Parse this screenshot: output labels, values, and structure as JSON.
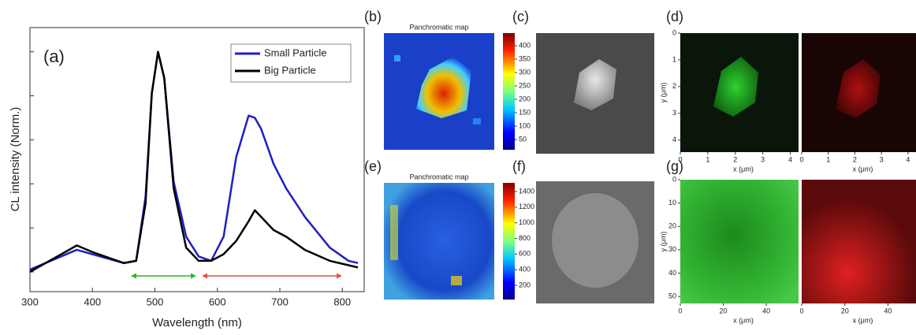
{
  "chart_data": {
    "type": "line",
    "annotation": "(a)",
    "xlabel": "Wavelength (nm)",
    "ylabel": "CL intensity (Norm.)",
    "x": [
      300,
      350,
      375,
      400,
      450,
      470,
      485,
      495,
      505,
      515,
      530,
      550,
      570,
      590,
      610,
      630,
      650,
      660,
      670,
      690,
      710,
      740,
      780,
      810,
      825
    ],
    "series": [
      {
        "name": "Small Particle",
        "color": "#1f1fc4",
        "values": [
          0.01,
          0.07,
          0.1,
          0.08,
          0.04,
          0.05,
          0.34,
          0.81,
          1.0,
          0.88,
          0.41,
          0.16,
          0.07,
          0.05,
          0.16,
          0.52,
          0.71,
          0.7,
          0.65,
          0.49,
          0.38,
          0.25,
          0.11,
          0.05,
          0.04
        ]
      },
      {
        "name": "Big Particle",
        "color": "#000000",
        "values": [
          0.0,
          0.08,
          0.12,
          0.09,
          0.04,
          0.05,
          0.31,
          0.81,
          1.0,
          0.88,
          0.38,
          0.11,
          0.05,
          0.05,
          0.08,
          0.14,
          0.23,
          0.28,
          0.25,
          0.19,
          0.16,
          0.1,
          0.05,
          0.03,
          0.02
        ]
      }
    ],
    "xlim": [
      300,
      835
    ],
    "xticks": [
      300,
      400,
      500,
      600,
      700,
      800
    ],
    "ylim": [
      -0.09,
      1.11
    ],
    "yticks": [
      0,
      0.2,
      0.4,
      0.6,
      0.8,
      1.0
    ],
    "legend": "upper right"
  },
  "panels": [
    {
      "label": "(b)",
      "title": "Panchromatic map",
      "colorbar": {
        "lim": [
          12,
          447
        ],
        "ticks": [
          50,
          100,
          150,
          200,
          250,
          300,
          350,
          400
        ]
      }
    },
    {
      "label": "(c)"
    },
    {
      "label": "(d)",
      "ylabel": "y (μm)",
      "ylim": [
        0,
        4.45
      ],
      "yticks": [
        0,
        1,
        2,
        3,
        4
      ],
      "frames": [
        {
          "xlabel": "x (μm)",
          "xlim": [
            0,
            4.3
          ],
          "xticks": [
            0,
            1,
            2,
            3,
            4
          ]
        },
        {
          "xlabel": "x (μm)",
          "xlim": [
            0,
            4.3
          ],
          "xticks": [
            0,
            1,
            2,
            3,
            4
          ]
        }
      ]
    },
    {
      "label": "(e)",
      "title": "Panchromatic map",
      "colorbar": {
        "lim": [
          19,
          1511
        ],
        "ticks": [
          200,
          400,
          600,
          800,
          1000,
          1200,
          1400
        ]
      }
    },
    {
      "label": "(f)"
    },
    {
      "label": "(g)",
      "ylabel": "y (μm)",
      "ylim": [
        0,
        53
      ],
      "yticks": [
        0,
        10,
        20,
        30,
        40,
        50
      ],
      "frames": [
        {
          "xlabel": "x (μm)",
          "xlim": [
            0,
            55
          ],
          "xticks": [
            0,
            20,
            40
          ]
        },
        {
          "xlabel": "x (μm)",
          "xlim": [
            0,
            53
          ],
          "xticks": [
            0,
            20,
            40
          ]
        }
      ]
    }
  ]
}
